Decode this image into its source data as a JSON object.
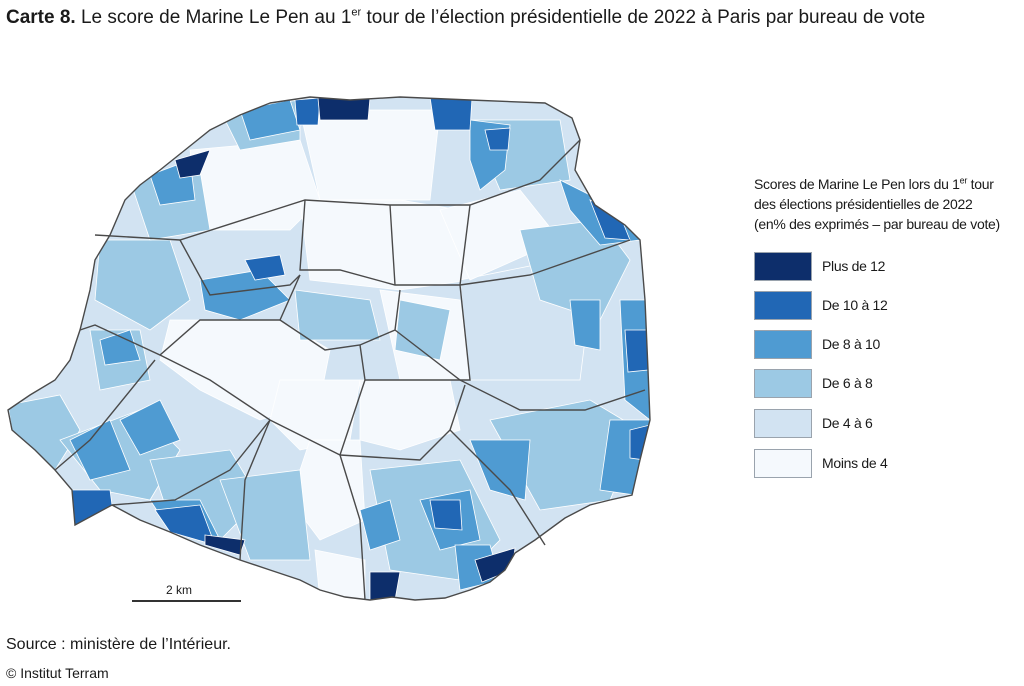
{
  "title": {
    "label": "Carte 8.",
    "text_before": "Le score de Marine Le Pen au 1",
    "superscript": "er",
    "text_after": "tour de l’élection présidentielle de 2022 à Paris par bureau de vote"
  },
  "legend": {
    "title_line1_before": "Scores de Marine Le Pen lors du 1",
    "title_line1_sup": "er",
    "title_line1_after": "tour",
    "title_line2": "des élections présidentielles de 2022",
    "title_line3": "(en% des exprimés – par bureau de vote)",
    "items": [
      {
        "label": "Plus de 12",
        "color": "#0d2e6b"
      },
      {
        "label": "De 10 à 12",
        "color": "#2167b5"
      },
      {
        "label": "De 8 à 10",
        "color": "#4f9bd2"
      },
      {
        "label": "De 6 à 8",
        "color": "#9cc9e4"
      },
      {
        "label": "De 4 à 6",
        "color": "#d2e3f2"
      },
      {
        "label": "Moins de 4",
        "color": "#f5f9fd"
      }
    ]
  },
  "scale": {
    "label": "2 km"
  },
  "source": "Source : ministère de l’Intérieur.",
  "credit": "© Institut Terram"
}
